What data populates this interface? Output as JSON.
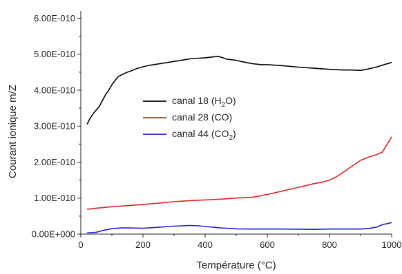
{
  "chart_data": {
    "type": "line",
    "title": "",
    "xlabel": "Température (°C)",
    "ylabel": "Courant ionique m/Z",
    "xlim": [
      0,
      1000
    ],
    "ylim": [
      0,
      6.2e-10
    ],
    "x_ticks": [
      0,
      200,
      400,
      600,
      800,
      1000
    ],
    "x_tick_labels": [
      "0",
      "200",
      "400",
      "600",
      "800",
      "1000"
    ],
    "y_ticks": [
      0,
      1e-10,
      2e-10,
      3e-10,
      4e-10,
      5e-10,
      6e-10
    ],
    "y_tick_labels": [
      "0.00E+000",
      "1.00E-010",
      "2.00E-010",
      "3.00E-010",
      "4.00E-010",
      "5.00E-010",
      "6.00E-010"
    ],
    "grid": false,
    "legend_position": "middle-left",
    "series": [
      {
        "legend": {
          "prefix": "canal 18 (H",
          "sub": "2",
          "suffix": "O)"
        },
        "color": "#000000",
        "x": [
          20,
          30,
          40,
          50,
          60,
          70,
          80,
          90,
          100,
          110,
          120,
          130,
          140,
          150,
          160,
          180,
          200,
          220,
          250,
          280,
          300,
          330,
          350,
          380,
          400,
          420,
          430,
          440,
          450,
          470,
          500,
          520,
          550,
          580,
          600,
          650,
          700,
          750,
          780,
          800,
          820,
          850,
          870,
          900,
          920,
          950,
          980,
          1000
        ],
        "y": [
          3.05e-10,
          3.22e-10,
          3.35e-10,
          3.45e-10,
          3.55e-10,
          3.72e-10,
          3.88e-10,
          4e-10,
          4.15e-10,
          4.27e-10,
          4.37e-10,
          4.42e-10,
          4.46e-10,
          4.5e-10,
          4.53e-10,
          4.6e-10,
          4.65e-10,
          4.69e-10,
          4.73e-10,
          4.77e-10,
          4.8e-10,
          4.84e-10,
          4.87e-10,
          4.89e-10,
          4.9e-10,
          4.92e-10,
          4.93e-10,
          4.94e-10,
          4.92e-10,
          4.86e-10,
          4.83e-10,
          4.79e-10,
          4.74e-10,
          4.71e-10,
          4.71e-10,
          4.68e-10,
          4.64e-10,
          4.61e-10,
          4.59e-10,
          4.58e-10,
          4.57e-10,
          4.56e-10,
          4.56e-10,
          4.55e-10,
          4.58e-10,
          4.64e-10,
          4.72e-10,
          4.77e-10
        ]
      },
      {
        "legend": {
          "prefix": "canal 28 (CO)",
          "sub": "",
          "suffix": ""
        },
        "color": "#dd2222",
        "x": [
          20,
          50,
          100,
          150,
          200,
          250,
          300,
          350,
          400,
          450,
          500,
          550,
          600,
          650,
          700,
          750,
          780,
          800,
          820,
          850,
          880,
          900,
          930,
          950,
          970,
          1000
        ],
        "y": [
          6.9e-11,
          7.2e-11,
          7.6e-11,
          7.9e-11,
          8.2e-11,
          8.6e-11,
          9e-11,
          9.3e-11,
          9.5e-11,
          9.7e-11,
          1e-10,
          1.02e-10,
          1.1e-10,
          1.2e-10,
          1.3e-10,
          1.4e-10,
          1.45e-10,
          1.5e-10,
          1.58e-10,
          1.75e-10,
          1.93e-10,
          2.05e-10,
          2.15e-10,
          2.2e-10,
          2.28e-10,
          2.7e-10
        ]
      },
      {
        "legend": {
          "prefix": "canal 44 (CO",
          "sub": "2",
          "suffix": ")"
        },
        "color": "#1f1fd6",
        "x": [
          20,
          50,
          70,
          100,
          130,
          150,
          200,
          250,
          300,
          350,
          380,
          400,
          450,
          500,
          550,
          600,
          650,
          700,
          750,
          800,
          850,
          900,
          930,
          950,
          970,
          1000
        ],
        "y": [
          3e-12,
          5e-12,
          1e-11,
          1.5e-11,
          1.7e-11,
          1.7e-11,
          1.6e-11,
          1.9e-11,
          2.2e-11,
          2.4e-11,
          2.3e-11,
          2.1e-11,
          1.7e-11,
          1.45e-11,
          1.4e-11,
          1.4e-11,
          1.4e-11,
          1.35e-11,
          1.3e-11,
          1.4e-11,
          1.4e-11,
          1.4e-11,
          1.6e-11,
          1.9e-11,
          2.6e-11,
          3.2e-11
        ]
      }
    ]
  }
}
